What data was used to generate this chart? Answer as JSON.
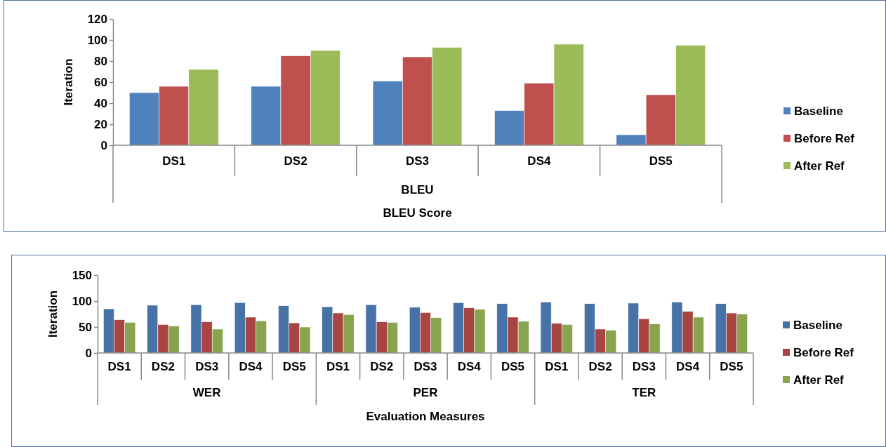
{
  "chart_data": [
    {
      "type": "bar",
      "xlabel": "BLEU Score",
      "ylabel": "Iteration",
      "categories": [
        "DS1",
        "DS2",
        "DS3",
        "DS4",
        "DS5"
      ],
      "annotations": [
        "BLEU"
      ],
      "ylim": [
        0,
        120
      ],
      "yticks": [
        0,
        20,
        40,
        60,
        80,
        100,
        120
      ],
      "grid": false,
      "legend": "right",
      "series": [
        {
          "name": "Baseline",
          "color": "#4f81bd",
          "values": [
            50,
            56,
            61,
            33,
            10
          ]
        },
        {
          "name": "Before Ref",
          "color": "#c0504d",
          "values": [
            56,
            85,
            84,
            59,
            48
          ]
        },
        {
          "name": "After Ref",
          "color": "#9bbb59",
          "values": [
            72,
            90,
            93,
            96,
            95
          ]
        }
      ]
    },
    {
      "type": "bar",
      "xlabel": "Evaluation Measures",
      "ylabel": "Iteration",
      "categories": [
        "DS1",
        "DS2",
        "DS3",
        "DS4",
        "DS5",
        "DS1",
        "DS2",
        "DS3",
        "DS4",
        "DS5",
        "DS1",
        "DS2",
        "DS3",
        "DS4",
        "DS5"
      ],
      "annotations": [
        "WER",
        "PER",
        "TER"
      ],
      "ylim": [
        0,
        150
      ],
      "yticks": [
        0,
        50,
        100,
        150
      ],
      "grid": false,
      "legend": "right",
      "series": [
        {
          "name": "Baseline",
          "color": "#4672a8",
          "values": [
            85,
            92,
            93,
            97,
            91,
            89,
            93,
            88,
            97,
            95,
            98,
            95,
            96,
            98,
            95
          ]
        },
        {
          "name": "Before Ref",
          "color": "#a84543",
          "values": [
            64,
            55,
            60,
            69,
            58,
            77,
            60,
            78,
            87,
            69,
            57,
            46,
            66,
            80,
            77
          ]
        },
        {
          "name": "After Ref",
          "color": "#89a44f",
          "values": [
            59,
            52,
            46,
            62,
            50,
            74,
            59,
            68,
            84,
            61,
            55,
            44,
            56,
            69,
            75
          ]
        }
      ]
    }
  ]
}
